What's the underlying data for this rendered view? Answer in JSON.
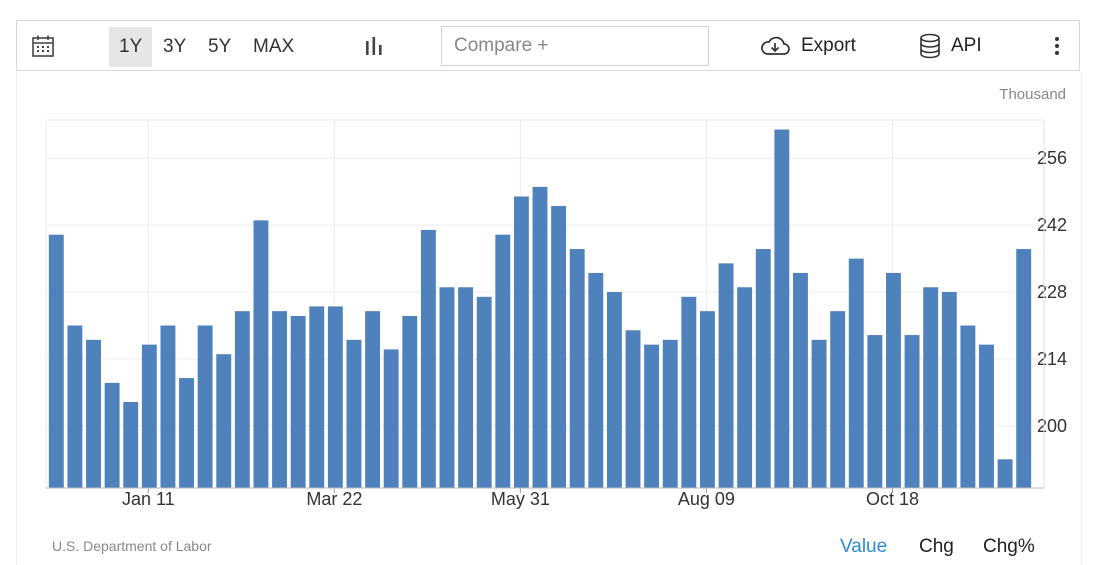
{
  "toolbar": {
    "calendar_icon": "calendar-icon",
    "ranges": [
      "1Y",
      "3Y",
      "5Y",
      "MAX"
    ],
    "active_range": "1Y",
    "chart_type_icon": "bar-chart-icon",
    "compare_placeholder": "Compare +",
    "export_label": "Export",
    "export_icon": "cloud-download-icon",
    "api_label": "API",
    "api_icon": "database-icon",
    "more_icon": "more-vertical-icon"
  },
  "unit_label": "Thousand",
  "source": "U.S. Department of Labor",
  "view_modes": [
    "Value",
    "Chg",
    "Chg%"
  ],
  "active_mode": "Value",
  "colors": {
    "bar": "#4f81bd",
    "active_mode": "#2b8cd6",
    "grid": "#ececec"
  },
  "chart_data": {
    "type": "bar",
    "ylim": [
      187,
      264
    ],
    "yticks": [
      200,
      214,
      228,
      242,
      256
    ],
    "xticks": [
      {
        "label": "Jan 11",
        "index": 5
      },
      {
        "label": "Mar 22",
        "index": 15
      },
      {
        "label": "May 31",
        "index": 25
      },
      {
        "label": "Aug 09",
        "index": 35
      },
      {
        "label": "Oct 18",
        "index": 45
      }
    ],
    "grid": true,
    "values": [
      240,
      221,
      218,
      209,
      205,
      217,
      221,
      210,
      221,
      215,
      224,
      243,
      224,
      223,
      225,
      225,
      218,
      224,
      216,
      223,
      241,
      229,
      229,
      227,
      240,
      248,
      250,
      246,
      237,
      232,
      228,
      220,
      217,
      218,
      227,
      224,
      234,
      229,
      237,
      262,
      232,
      218,
      224,
      235,
      219,
      232,
      219,
      229,
      228,
      221,
      217,
      193,
      237
    ]
  }
}
